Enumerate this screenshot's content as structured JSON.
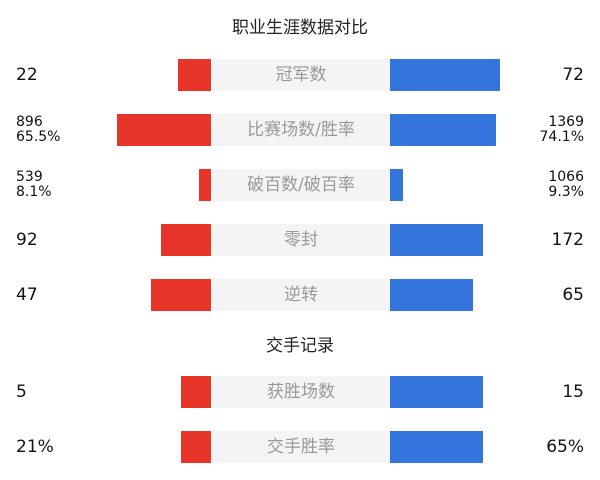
{
  "chart_data": {
    "type": "table",
    "colors": {
      "left": "#e8352a",
      "right": "#3375dd",
      "label_bg": "#f4f4f4"
    },
    "sections": [
      {
        "title": "职业生涯数据对比",
        "rows": [
          {
            "label": "冠军数",
            "left": [
              "22"
            ],
            "right": [
              "72"
            ],
            "left_fill": 0.23,
            "right_fill": 0.77
          },
          {
            "label": "比赛场数/胜率",
            "left": [
              "896",
              "65.5%"
            ],
            "right": [
              "1369",
              "74.1%"
            ],
            "left_fill": 0.655,
            "right_fill": 0.741
          },
          {
            "label": "破百数/破百率",
            "left": [
              "539",
              "8.1%"
            ],
            "right": [
              "1066",
              "9.3%"
            ],
            "left_fill": 0.081,
            "right_fill": 0.093
          },
          {
            "label": "零封",
            "left": [
              "92"
            ],
            "right": [
              "172"
            ],
            "left_fill": 0.35,
            "right_fill": 0.65
          },
          {
            "label": "逆转",
            "left": [
              "47"
            ],
            "right": [
              "65"
            ],
            "left_fill": 0.42,
            "right_fill": 0.58
          }
        ]
      },
      {
        "title": "交手记录",
        "rows": [
          {
            "label": "获胜场数",
            "left": [
              "5"
            ],
            "right": [
              "15"
            ],
            "left_fill": 0.21,
            "right_fill": 0.65
          },
          {
            "label": "交手胜率",
            "left": [
              "21%"
            ],
            "right": [
              "65%"
            ],
            "left_fill": 0.21,
            "right_fill": 0.65
          }
        ]
      }
    ]
  }
}
